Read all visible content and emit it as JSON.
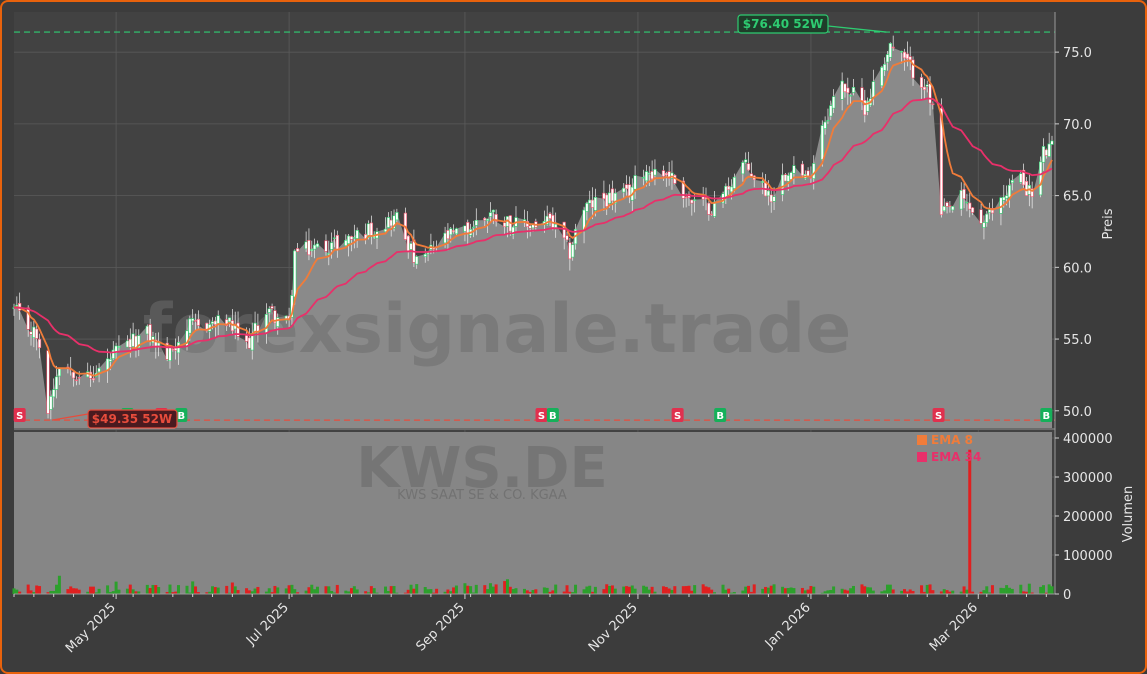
{
  "chart_data": {
    "type": "candlestick",
    "ticker": "KWS.DE",
    "company": "KWS SAAT SE & CO. KGAA",
    "watermark": "forexsignale.trade",
    "ylabel_price": "Preis",
    "ylabel_volume": "Volumen",
    "price_ylim": [
      48.8,
      77.8
    ],
    "volume_ylim": [
      0,
      400000
    ],
    "price_ticks": [
      "50.0",
      "55.0",
      "60.0",
      "65.0",
      "70.0",
      "75.0"
    ],
    "volume_ticks": [
      "0",
      "100000",
      "200000",
      "300000",
      "400000"
    ],
    "x_ticks": [
      "May 2025",
      "Jul 2025",
      "Sep 2025",
      "Nov 2025",
      "Jan 2026",
      "Mar 2026"
    ],
    "x_tick_dates": [
      "2025-05-01",
      "2025-07-01",
      "2025-09-01",
      "2025-11-01",
      "2026-01-01",
      "2026-03-01"
    ],
    "date_range": [
      "2025-03-26",
      "2026-03-27"
    ],
    "legend": [
      {
        "name": "EMA 8",
        "color": "#f07c3a"
      },
      {
        "name": "EMA 34",
        "color": "#e8306a"
      }
    ],
    "high_52w": {
      "label": "$76.40 52W",
      "value": 76.4,
      "date": "2026-01-29"
    },
    "low_52w": {
      "label": "$49.35 52W",
      "value": 49.35,
      "date": "2025-04-07"
    },
    "close_anchors": [
      [
        "2025-03-26",
        57.0
      ],
      [
        "2025-04-03",
        55.2
      ],
      [
        "2025-04-07",
        50.2
      ],
      [
        "2025-04-11",
        53.4
      ],
      [
        "2025-04-22",
        52.2
      ],
      [
        "2025-05-01",
        54.0
      ],
      [
        "2025-05-12",
        55.4
      ],
      [
        "2025-05-19",
        53.8
      ],
      [
        "2025-05-26",
        55.8
      ],
      [
        "2025-06-09",
        56.2
      ],
      [
        "2025-06-16",
        54.5
      ],
      [
        "2025-06-23",
        57.0
      ],
      [
        "2025-07-01",
        56.0
      ],
      [
        "2025-07-03",
        61.0
      ],
      [
        "2025-07-20",
        61.8
      ],
      [
        "2025-08-08",
        63.5
      ],
      [
        "2025-08-15",
        60.2
      ],
      [
        "2025-08-25",
        62.0
      ],
      [
        "2025-09-01",
        62.5
      ],
      [
        "2025-09-10",
        63.8
      ],
      [
        "2025-09-20",
        62.8
      ],
      [
        "2025-10-01",
        63.2
      ],
      [
        "2025-10-08",
        61.0
      ],
      [
        "2025-10-12",
        64.0
      ],
      [
        "2025-10-20",
        64.8
      ],
      [
        "2025-10-28",
        65.0
      ],
      [
        "2025-11-03",
        66.8
      ],
      [
        "2025-11-12",
        66.5
      ],
      [
        "2025-11-20",
        64.5
      ],
      [
        "2025-11-28",
        64.2
      ],
      [
        "2025-12-08",
        67.2
      ],
      [
        "2025-12-18",
        65.0
      ],
      [
        "2025-12-25",
        67.2
      ],
      [
        "2025-12-31",
        66.0
      ],
      [
        "2026-01-05",
        70.0
      ],
      [
        "2026-01-12",
        72.8
      ],
      [
        "2026-01-20",
        71.2
      ],
      [
        "2026-01-29",
        75.5
      ],
      [
        "2026-02-04",
        74.2
      ],
      [
        "2026-02-10",
        72.8
      ],
      [
        "2026-02-13",
        71.0
      ],
      [
        "2026-02-16",
        63.5
      ],
      [
        "2026-02-23",
        64.8
      ],
      [
        "2026-03-03",
        63.0
      ],
      [
        "2026-03-08",
        64.5
      ],
      [
        "2026-03-15",
        66.5
      ],
      [
        "2026-03-20",
        65.0
      ],
      [
        "2026-03-24",
        68.0
      ],
      [
        "2026-03-27",
        68.3
      ]
    ],
    "volume_spike": {
      "date": "2026-02-26",
      "value": 370000
    },
    "signals": [
      {
        "type": "S",
        "date": "2025-03-28"
      },
      {
        "type": "B",
        "date": "2025-05-05"
      },
      {
        "type": "S",
        "date": "2025-05-17"
      },
      {
        "type": "B",
        "date": "2025-05-24"
      },
      {
        "type": "S",
        "date": "2025-09-28"
      },
      {
        "type": "B",
        "date": "2025-10-02"
      },
      {
        "type": "S",
        "date": "2025-11-15"
      },
      {
        "type": "B",
        "date": "2025-11-30"
      },
      {
        "type": "S",
        "date": "2026-02-15"
      },
      {
        "type": "B",
        "date": "2026-03-25"
      }
    ],
    "colors": {
      "up": "#2bd46e",
      "down": "#f0506a",
      "ema8": "#f07c3a",
      "ema34": "#e8306a",
      "high_line": "#2ecc71",
      "low_line": "#e74c3c",
      "vol_up": "#2ca02c",
      "vol_down": "#e02020",
      "fill": "#8a8a8a"
    }
  }
}
